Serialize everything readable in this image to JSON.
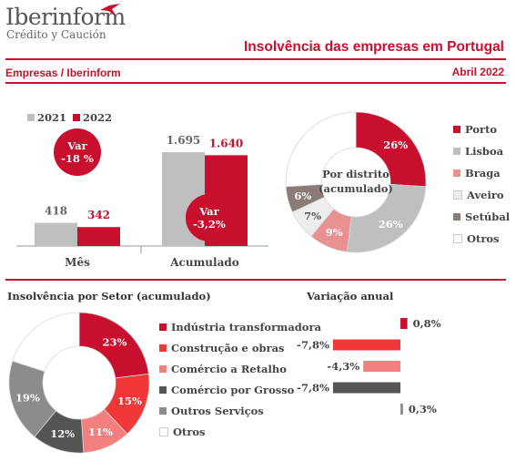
{
  "header": {
    "logo_name": "Iberinform",
    "logo_tagline": "Crédito y Caución",
    "title": "Insolvência das empresas em Portugal",
    "subtitle_left": "Empresas / Iberinform",
    "subtitle_right": "Abril 2022"
  },
  "colors": {
    "brand_red": "#c8102e",
    "grey_2021": "#bfbfbf"
  },
  "chart_data": [
    {
      "type": "bar",
      "categories": [
        "Mês",
        "Acumulado"
      ],
      "series": [
        {
          "name": "2021",
          "values": [
            418,
            1695
          ],
          "labels": [
            "418",
            "1.695"
          ],
          "color": "#bfbfbf"
        },
        {
          "name": "2022",
          "values": [
            342,
            1640
          ],
          "labels": [
            "342",
            "1.640"
          ],
          "color": "#c8102e"
        }
      ],
      "annotations": [
        {
          "line1": "Var",
          "line2": "-18 %"
        },
        {
          "line1": "Var",
          "line2": "-3,2%"
        }
      ]
    },
    {
      "type": "pie",
      "title": "Por distrito (acumulado)",
      "center_line1": "Por distrito",
      "center_line2": "(acumulado)",
      "slices": [
        {
          "name": "Porto",
          "value": 26,
          "label": "26%",
          "color": "#c8102e"
        },
        {
          "name": "Lisboa",
          "value": 26,
          "label": "26%",
          "color": "#bfbfbf"
        },
        {
          "name": "Braga",
          "value": 9,
          "label": "9%",
          "color": "#e99090"
        },
        {
          "name": "Aveiro",
          "value": 7,
          "label": "7%",
          "color": "#ededed"
        },
        {
          "name": "Setúbal",
          "value": 6,
          "label": "6%",
          "color": "#8a7b76"
        },
        {
          "name": "Otros",
          "value": 26,
          "label": "",
          "color": "#ffffff"
        }
      ]
    },
    {
      "type": "pie",
      "title": "Insolvência por Setor (acumulado)",
      "slices": [
        {
          "name": "Indústria transformadora",
          "value": 23,
          "label": "23%",
          "color": "#c8102e"
        },
        {
          "name": "Construção e obras",
          "value": 15,
          "label": "15%",
          "color": "#f03838"
        },
        {
          "name": "Comércio a Retalho",
          "value": 11,
          "label": "11%",
          "color": "#f47f7f"
        },
        {
          "name": "Comércio por Grosso",
          "value": 12,
          "label": "12%",
          "color": "#555555"
        },
        {
          "name": "Outros Serviços",
          "value": 19,
          "label": "19%",
          "color": "#8c8c8c"
        },
        {
          "name": "Otros",
          "value": 20,
          "label": "",
          "color": "#ffffff"
        }
      ]
    },
    {
      "type": "bar",
      "orientation": "horizontal",
      "title": "Variação anual",
      "categories": [
        "Indústria transformadora",
        "Construção e obras",
        "Comércio a Retalho",
        "Comércio por Grosso",
        "Outros Serviços"
      ],
      "values": [
        0.8,
        -7.8,
        -4.3,
        -7.8,
        0.3
      ],
      "labels": [
        "0,8%",
        "-7,8%",
        "-4,3%",
        "-7,8%",
        "0,3%"
      ],
      "colors": [
        "#c8102e",
        "#f03838",
        "#f47f7f",
        "#555555",
        "#8c8c8c"
      ]
    }
  ]
}
